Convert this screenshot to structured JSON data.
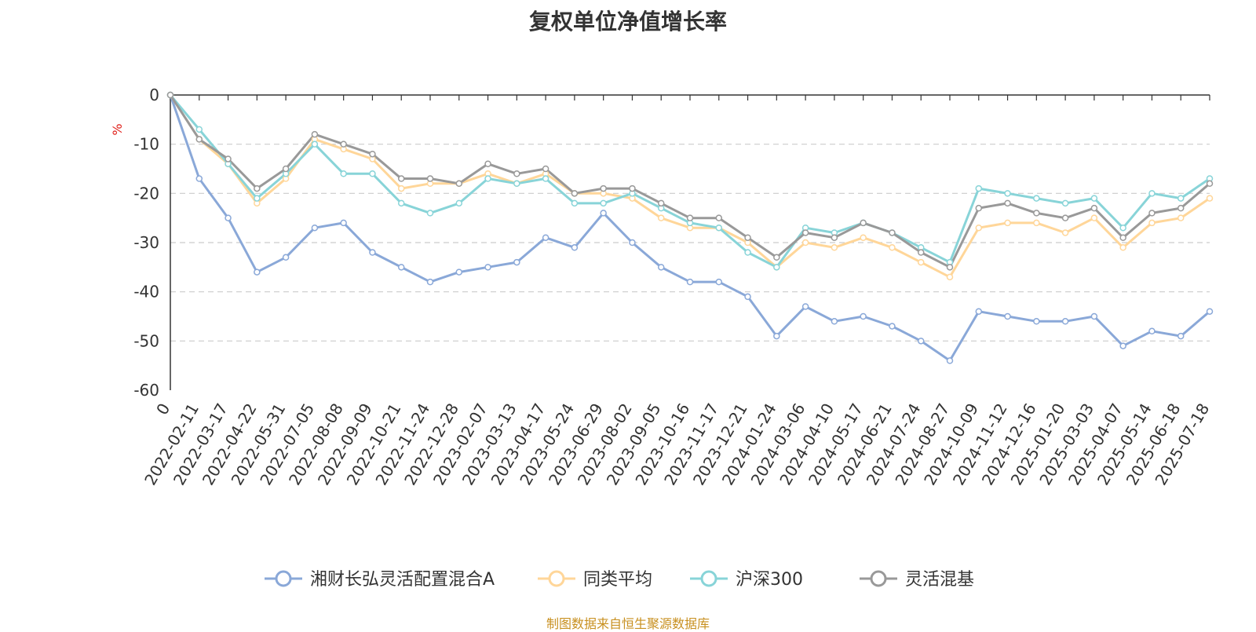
{
  "chart_data": {
    "type": "line",
    "title": "复权单位净值增长率",
    "ylabel": "%",
    "ylim": [
      -60,
      0
    ],
    "yticks": [
      "0",
      "-10",
      "-20",
      "-30",
      "-40",
      "-50",
      "-60"
    ],
    "grid": true,
    "legend_position": "bottom",
    "x_labels": [
      "0",
      "2022-02-11",
      "2022-03-17",
      "2022-04-22",
      "2022-05-31",
      "2022-07-05",
      "2022-08-08",
      "2022-09-09",
      "2022-10-21",
      "2022-11-24",
      "2022-12-28",
      "2023-02-07",
      "2023-03-13",
      "2023-04-17",
      "2023-05-24",
      "2023-06-29",
      "2023-08-02",
      "2023-09-05",
      "2023-10-16",
      "2023-11-17",
      "2023-12-21",
      "2024-01-24",
      "2024-03-06",
      "2024-04-10",
      "2024-05-17",
      "2024-06-21",
      "2024-07-24",
      "2024-08-27",
      "2024-10-09",
      "2024-11-12",
      "2024-12-16",
      "2025-01-20",
      "2025-03-03",
      "2025-04-07",
      "2025-05-14",
      "2025-06-18",
      "2025-07-18"
    ],
    "series": [
      {
        "name": "湘财长弘灵活配置混合A",
        "color": "#8aa8d8",
        "values": [
          0,
          -17,
          -25,
          -36,
          -33,
          -27,
          -26,
          -32,
          -35,
          -38,
          -36,
          -35,
          -34,
          -29,
          -31,
          -24,
          -30,
          -35,
          -38,
          -38,
          -41,
          -49,
          -43,
          -46,
          -45,
          -47,
          -50,
          -54,
          -44,
          -45,
          -46,
          -46,
          -45,
          -51,
          -48,
          -49,
          -44
        ]
      },
      {
        "name": "同类平均",
        "color": "#ffd699",
        "values": [
          0,
          -9,
          -14,
          -22,
          -17,
          -9,
          -11,
          -13,
          -19,
          -18,
          -18,
          -16,
          -18,
          -16,
          -20,
          -20,
          -21,
          -25,
          -27,
          -27,
          -30,
          -35,
          -30,
          -31,
          -29,
          -31,
          -34,
          -37,
          -27,
          -26,
          -26,
          -28,
          -25,
          -31,
          -26,
          -25,
          -21
        ]
      },
      {
        "name": "沪深300",
        "color": "#88d4d8",
        "values": [
          0,
          -7,
          -14,
          -21,
          -16,
          -10,
          -16,
          -16,
          -22,
          -24,
          -22,
          -17,
          -18,
          -17,
          -22,
          -22,
          -20,
          -23,
          -26,
          -27,
          -32,
          -35,
          -27,
          -28,
          -26,
          -28,
          -31,
          -34,
          -19,
          -20,
          -21,
          -22,
          -21,
          -27,
          -20,
          -21,
          -17
        ]
      },
      {
        "name": "灵活混基",
        "color": "#999999",
        "values": [
          0,
          -9,
          -13,
          -19,
          -15,
          -8,
          -10,
          -12,
          -17,
          -17,
          -18,
          -14,
          -16,
          -15,
          -20,
          -19,
          -19,
          -22,
          -25,
          -25,
          -29,
          -33,
          -28,
          -29,
          -26,
          -28,
          -32,
          -35,
          -23,
          -22,
          -24,
          -25,
          -23,
          -29,
          -24,
          -23,
          -18
        ]
      }
    ]
  },
  "source_note": "制图数据来自恒生聚源数据库"
}
